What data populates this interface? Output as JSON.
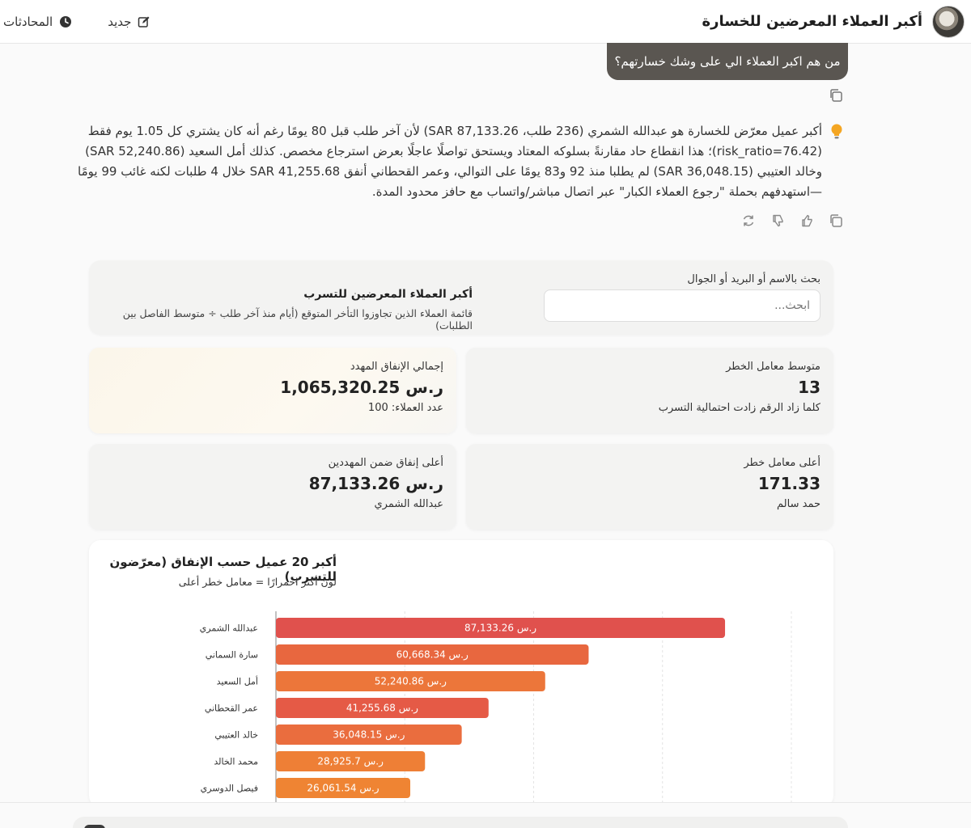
{
  "header": {
    "title": "أكبر العملاء المعرضين للخسارة",
    "new_label": "جديد",
    "conversations_label": "المحادثات"
  },
  "user_message": "من هم اكبر العملاء الي على وشك خسارتهم؟",
  "assistant": {
    "answer": "أكبر عميل معرّض للخسارة هو عبدالله الشمري (236 طلب، SAR 87,133.26) لأن آخر طلب قبل 80 يومًا رغم أنه كان يشتري كل 1.05 يوم فقط (risk_ratio=76.42)؛ هذا انقطاع حاد مقارنةً بسلوكه المعتاد ويستحق تواصلًا عاجلًا بعرض استرجاع مخصص. كذلك أمل السعيد (SAR 52,240.86) وخالد العتيبي (SAR 36,048.15) لم يطلبا منذ 92 و83 يومًا على التوالي، وعمر القحطاني أنفق SAR 41,255.68 خلال 4 طلبات لكنه غائب 99 يومًا—استهدفهم بحملة \"رجوع العملاء الكبار\" عبر اتصال مباشر/واتساب مع حافز محدود المدة."
  },
  "search": {
    "label": "بحث بالاسم أو البريد أو الجوال",
    "placeholder": "ابحث..."
  },
  "list": {
    "title": "أكبر العملاء المعرضين للتسرب",
    "subtitle": "قائمة العملاء الذين تجاوزوا التأخر المتوقع (أيام منذ آخر طلب ÷ متوسط الفاصل بين الطلبات)"
  },
  "kpis": {
    "avg_risk": {
      "label": "متوسط معامل الخطر",
      "value": "13",
      "sub": "كلما زاد الرقم زادت احتمالية التسرب"
    },
    "total_spend": {
      "label": "إجمالي الإنفاق المهدد",
      "value": "ر.س 1,065,320.25",
      "sub": "عدد العملاء: 100"
    },
    "top_risk": {
      "label": "أعلى معامل خطر",
      "value": "171.33",
      "sub": "حمد سالم"
    },
    "top_spend": {
      "label": "أعلى إنفاق ضمن المهددين",
      "value": "ر.س 87,133.26",
      "sub": "عبدالله الشمري"
    }
  },
  "chart_data": {
    "type": "bar",
    "orientation": "horizontal",
    "title": "أكبر 20 عميل حسب الإنفاق (معرّضون للتسرب)",
    "note": "لون أكثر احمرارًا = معامل خطر أعلى",
    "categories": [
      "عبدالله الشمري",
      "سارة السماني",
      "أمل السعيد",
      "عمر القحطاني",
      "خالد العتيبي",
      "محمد الخالد",
      "فيصل الدوسري"
    ],
    "values": [
      87133.26,
      60668.34,
      52240.86,
      41255.68,
      36048.15,
      28925.7,
      26061.54
    ],
    "value_labels": [
      "ر.س 87,133.26",
      "ر.س 60,668.34",
      "ر.س 52,240.86",
      "ر.س 41,255.68",
      "ر.س 36,048.15",
      "ر.س 28,925.7",
      "ر.س 26,061.54"
    ],
    "colors": [
      "#e0514d",
      "#e8673f",
      "#ec763a",
      "#e55a46",
      "#ea6d3e",
      "#ee7f36",
      "#ef8433"
    ],
    "xlim": [
      0,
      100000
    ],
    "grid": true
  }
}
